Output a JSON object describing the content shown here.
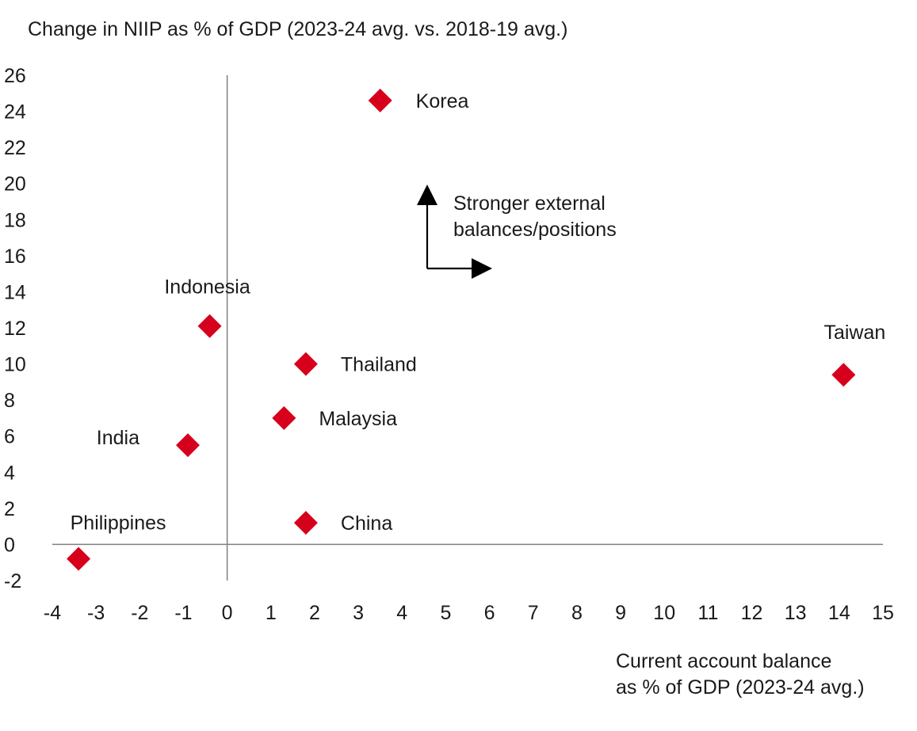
{
  "chart_data": {
    "type": "scatter",
    "title": "",
    "ylabel": "Change in NIIP as % of GDP (2023-24 avg. vs. 2018-19 avg.)",
    "xlabel_lines": [
      "Current account balance",
      "as % of GDP (2023-24 avg.)"
    ],
    "xlim": [
      -4,
      15
    ],
    "ylim": [
      -2,
      26
    ],
    "x_ticks": [
      -4,
      -3,
      -2,
      -1,
      0,
      1,
      2,
      3,
      4,
      5,
      6,
      7,
      8,
      9,
      10,
      11,
      12,
      13,
      14,
      15
    ],
    "y_ticks": [
      -2,
      0,
      2,
      4,
      6,
      8,
      10,
      12,
      14,
      16,
      18,
      20,
      22,
      24,
      26
    ],
    "grid": false,
    "legend": "none",
    "marker": "diamond",
    "marker_color": "#d6001c",
    "points": [
      {
        "label": "Korea",
        "x": 3.5,
        "y": 24.6
      },
      {
        "label": "Indonesia",
        "x": -0.4,
        "y": 12.1
      },
      {
        "label": "Thailand",
        "x": 1.8,
        "y": 10.0
      },
      {
        "label": "Taiwan",
        "x": 14.1,
        "y": 9.4
      },
      {
        "label": "Malaysia",
        "x": 1.3,
        "y": 7.0
      },
      {
        "label": "India",
        "x": -0.9,
        "y": 5.5
      },
      {
        "label": "China",
        "x": 1.8,
        "y": 1.2
      },
      {
        "label": "Philippines",
        "x": -3.4,
        "y": -0.8
      }
    ],
    "annotation": {
      "lines": [
        "Stronger external",
        "balances/positions"
      ],
      "arrows": [
        "up",
        "right"
      ]
    }
  }
}
